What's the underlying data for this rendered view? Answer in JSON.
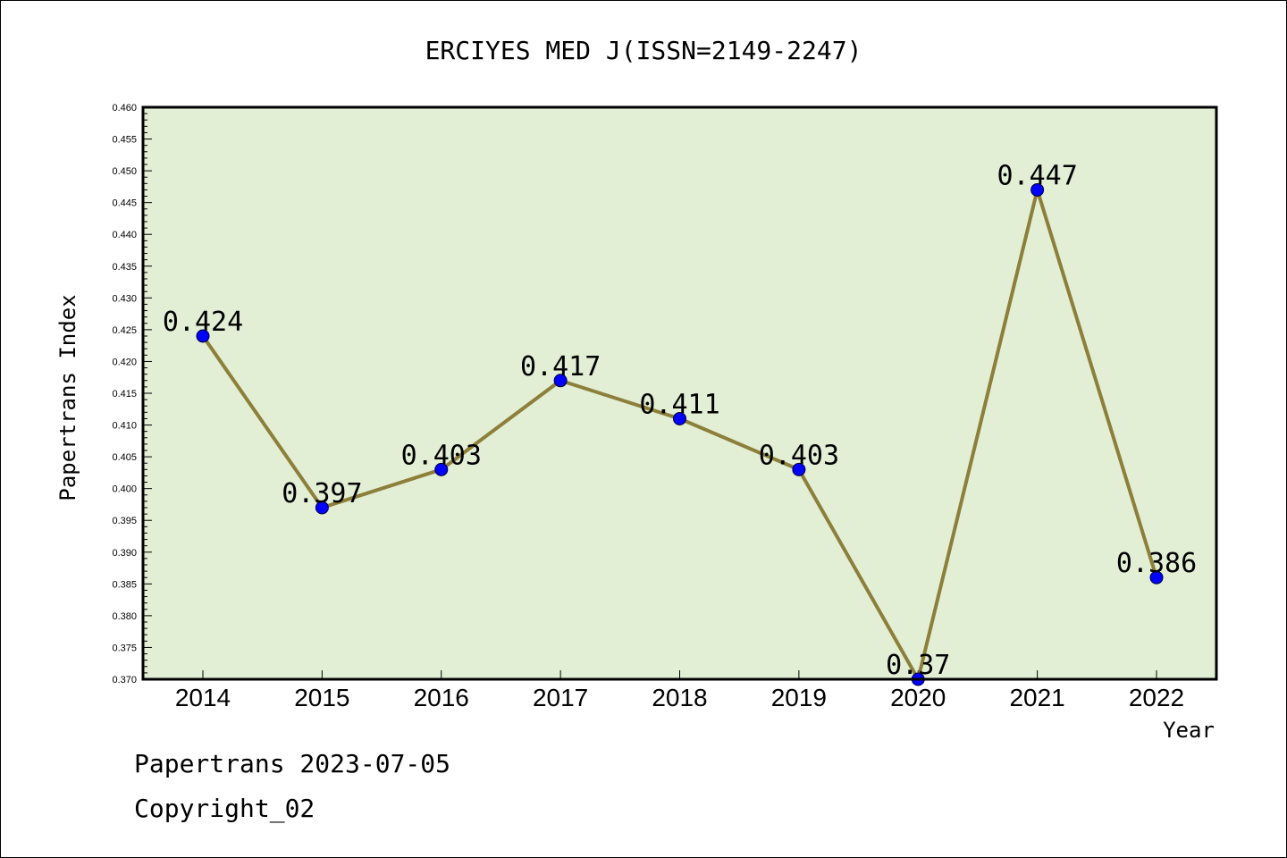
{
  "chart_data": {
    "type": "line",
    "title": "ERCIYES MED J(ISSN=2149-2247)",
    "xlabel": "Year",
    "ylabel": "Papertrans Index",
    "categories": [
      "2014",
      "2015",
      "2016",
      "2017",
      "2018",
      "2019",
      "2020",
      "2021",
      "2022"
    ],
    "series": [
      {
        "values": [
          0.424,
          0.397,
          0.403,
          0.417,
          0.411,
          0.403,
          0.37,
          0.447,
          0.386
        ],
        "labels": [
          "0.424",
          "0.397",
          "0.403",
          "0.417",
          "0.411",
          "0.403",
          "0.37",
          "0.447",
          "0.386"
        ]
      }
    ],
    "ylim": [
      0.37,
      0.46
    ],
    "yticks": [
      "0.370",
      "0.375",
      "0.380",
      "0.385",
      "0.390",
      "0.395",
      "0.400",
      "0.405",
      "0.410",
      "0.415",
      "0.420",
      "0.425",
      "0.430",
      "0.435",
      "0.440",
      "0.445",
      "0.450",
      "0.455",
      "0.460"
    ],
    "grid": false,
    "colors": {
      "plot_bg": "#e2efd5",
      "line": "#8c7f3a",
      "marker": "#0000ff"
    }
  },
  "footer": {
    "line1": "Papertrans 2023-07-05",
    "line2": "Copyright_02"
  }
}
